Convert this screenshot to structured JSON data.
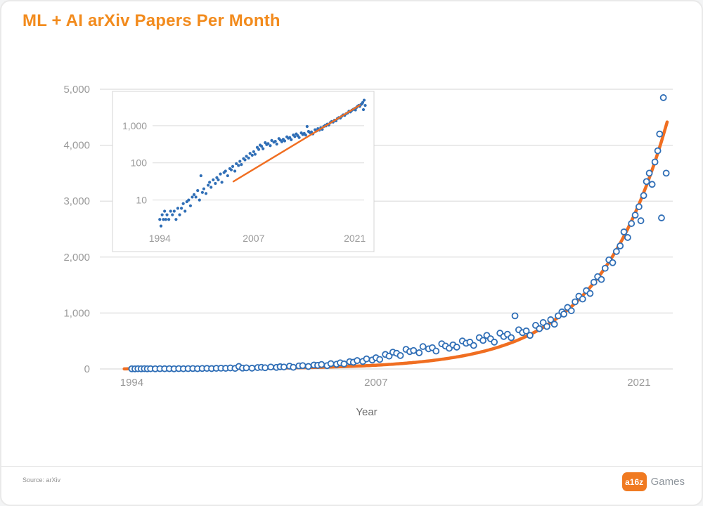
{
  "page": {
    "title": "ML + AI arXiv Papers Per Month"
  },
  "footer": {
    "source": "Source: arXiv",
    "brand": "a16z",
    "brand_suffix": "Games"
  },
  "colors": {
    "title_orange": "#F28B1D",
    "trend_orange": "#F06E21",
    "dot_blue": "#2F6EB6",
    "grid_gray": "#DCDCDC",
    "tick_gray": "#9A9A9A",
    "axis_label_gray": "#6B6B6B",
    "inset_border": "#D4D4D4"
  },
  "chart_data": {
    "type": "scatter",
    "title": "ML + AI arXiv Papers Per Month",
    "xlabel": "Year",
    "ylabel": "",
    "xlim": [
      1992.3,
      2022.8
    ],
    "ylim": [
      0,
      5000
    ],
    "grid": "horizontal",
    "x_ticks": [
      {
        "value": 1994,
        "label": "1994"
      },
      {
        "value": 2007,
        "label": "2007"
      },
      {
        "value": 2021,
        "label": "2021"
      }
    ],
    "y_ticks": [
      {
        "value": 0,
        "label": "0"
      },
      {
        "value": 1000,
        "label": "1,000"
      },
      {
        "value": 2000,
        "label": "2,000"
      },
      {
        "value": 3000,
        "label": "3,000"
      },
      {
        "value": 4000,
        "label": "4,000"
      },
      {
        "value": 5000,
        "label": "5,000"
      }
    ],
    "series": [
      {
        "name": "papers-per-month",
        "points": [
          [
            1994.0,
            3
          ],
          [
            1994.17,
            2
          ],
          [
            1994.33,
            4
          ],
          [
            1994.5,
            3
          ],
          [
            1994.67,
            5
          ],
          [
            1994.83,
            3
          ],
          [
            1995.0,
            4
          ],
          [
            1995.25,
            3
          ],
          [
            1995.5,
            5
          ],
          [
            1995.75,
            4
          ],
          [
            1996.0,
            5
          ],
          [
            1996.25,
            3
          ],
          [
            1996.5,
            6
          ],
          [
            1996.75,
            4
          ],
          [
            1997.0,
            6
          ],
          [
            1997.25,
            8
          ],
          [
            1997.5,
            5
          ],
          [
            1997.75,
            9
          ],
          [
            1998.0,
            10
          ],
          [
            1998.25,
            7
          ],
          [
            1998.5,
            12
          ],
          [
            1998.75,
            14
          ],
          [
            1999.0,
            12
          ],
          [
            1999.25,
            18
          ],
          [
            1999.5,
            10
          ],
          [
            1999.7,
            45
          ],
          [
            1999.9,
            16
          ],
          [
            2000.1,
            20
          ],
          [
            2000.4,
            15
          ],
          [
            2000.7,
            25
          ],
          [
            2000.9,
            30
          ],
          [
            2001.1,
            22
          ],
          [
            2001.4,
            35
          ],
          [
            2001.7,
            28
          ],
          [
            2001.9,
            40
          ],
          [
            2002.1,
            35
          ],
          [
            2002.4,
            50
          ],
          [
            2002.6,
            30
          ],
          [
            2002.9,
            55
          ],
          [
            2003.1,
            60
          ],
          [
            2003.4,
            45
          ],
          [
            2003.7,
            70
          ],
          [
            2003.9,
            65
          ],
          [
            2004.1,
            80
          ],
          [
            2004.4,
            60
          ],
          [
            2004.6,
            95
          ],
          [
            2004.9,
            85
          ],
          [
            2005.1,
            110
          ],
          [
            2005.3,
            90
          ],
          [
            2005.6,
            130
          ],
          [
            2005.8,
            120
          ],
          [
            2006.0,
            150
          ],
          [
            2006.3,
            135
          ],
          [
            2006.5,
            180
          ],
          [
            2006.8,
            160
          ],
          [
            2007.0,
            200
          ],
          [
            2007.2,
            170
          ],
          [
            2007.5,
            260
          ],
          [
            2007.7,
            230
          ],
          [
            2007.9,
            300
          ],
          [
            2008.1,
            280
          ],
          [
            2008.3,
            240
          ],
          [
            2008.6,
            350
          ],
          [
            2008.8,
            310
          ],
          [
            2009.0,
            330
          ],
          [
            2009.3,
            290
          ],
          [
            2009.5,
            400
          ],
          [
            2009.8,
            360
          ],
          [
            2010.0,
            380
          ],
          [
            2010.2,
            320
          ],
          [
            2010.5,
            450
          ],
          [
            2010.7,
            410
          ],
          [
            2010.9,
            370
          ],
          [
            2011.1,
            430
          ],
          [
            2011.3,
            390
          ],
          [
            2011.6,
            500
          ],
          [
            2011.8,
            460
          ],
          [
            2012.0,
            480
          ],
          [
            2012.2,
            420
          ],
          [
            2012.5,
            560
          ],
          [
            2012.7,
            510
          ],
          [
            2012.9,
            600
          ],
          [
            2013.1,
            540
          ],
          [
            2013.3,
            480
          ],
          [
            2013.6,
            640
          ],
          [
            2013.8,
            580
          ],
          [
            2014.0,
            620
          ],
          [
            2014.2,
            560
          ],
          [
            2014.4,
            950
          ],
          [
            2014.6,
            700
          ],
          [
            2014.8,
            650
          ],
          [
            2015.0,
            680
          ],
          [
            2015.2,
            600
          ],
          [
            2015.5,
            780
          ],
          [
            2015.7,
            720
          ],
          [
            2015.9,
            830
          ],
          [
            2016.1,
            760
          ],
          [
            2016.3,
            880
          ],
          [
            2016.5,
            800
          ],
          [
            2016.7,
            950
          ],
          [
            2016.9,
            1020
          ],
          [
            2017.0,
            980
          ],
          [
            2017.2,
            1100
          ],
          [
            2017.4,
            1040
          ],
          [
            2017.6,
            1200
          ],
          [
            2017.8,
            1300
          ],
          [
            2018.0,
            1250
          ],
          [
            2018.2,
            1400
          ],
          [
            2018.4,
            1350
          ],
          [
            2018.6,
            1550
          ],
          [
            2018.8,
            1650
          ],
          [
            2019.0,
            1600
          ],
          [
            2019.2,
            1800
          ],
          [
            2019.4,
            1950
          ],
          [
            2019.6,
            1900
          ],
          [
            2019.8,
            2100
          ],
          [
            2020.0,
            2200
          ],
          [
            2020.2,
            2450
          ],
          [
            2020.4,
            2350
          ],
          [
            2020.6,
            2600
          ],
          [
            2020.8,
            2750
          ],
          [
            2021.0,
            2900
          ],
          [
            2021.1,
            2650
          ],
          [
            2021.25,
            3100
          ],
          [
            2021.4,
            3350
          ],
          [
            2021.55,
            3500
          ],
          [
            2021.7,
            3300
          ],
          [
            2021.85,
            3700
          ],
          [
            2022.0,
            3900
          ],
          [
            2022.1,
            4200
          ],
          [
            2022.2,
            2700
          ],
          [
            2022.3,
            4850
          ],
          [
            2022.45,
            3500
          ]
        ]
      }
    ],
    "trend": {
      "type": "exponential",
      "anchor_year": 2017,
      "anchor_value": 1000,
      "growth_rate_per_year": 0.27,
      "start_year": 1993.6,
      "end_year": 2022.55
    },
    "inset": {
      "scale": "log",
      "xlim": [
        1993,
        2022.3
      ],
      "ylim": [
        1.8,
        4000
      ],
      "x_ticks": [
        {
          "value": 1994,
          "label": "1994"
        },
        {
          "value": 2007,
          "label": "2007"
        },
        {
          "value": 2021,
          "label": "2021"
        }
      ],
      "y_ticks": [
        {
          "value": 10,
          "label": "10"
        },
        {
          "value": 100,
          "label": "100"
        },
        {
          "value": 1000,
          "label": "1,000"
        }
      ],
      "fit_start_year": 2004.2,
      "fit_end_year": 2021.7
    }
  }
}
